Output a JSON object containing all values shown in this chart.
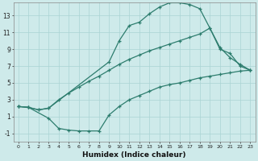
{
  "xlabel": "Humidex (Indice chaleur)",
  "bg_color": "#ceeaea",
  "line_color": "#2d7d6e",
  "xlim": [
    -0.5,
    23.5
  ],
  "ylim": [
    -2.0,
    14.5
  ],
  "xticks": [
    0,
    1,
    2,
    3,
    4,
    5,
    6,
    7,
    8,
    9,
    10,
    11,
    12,
    13,
    14,
    15,
    16,
    17,
    18,
    19,
    20,
    21,
    22,
    23
  ],
  "yticks": [
    -1,
    1,
    3,
    5,
    7,
    9,
    11,
    13
  ],
  "grid_color": "#aad4d4",
  "line1_x": [
    0,
    1,
    2,
    3,
    9,
    10,
    11,
    12,
    13,
    14,
    15,
    16,
    17,
    18,
    19,
    20,
    21,
    22,
    23
  ],
  "line1_y": [
    2.2,
    2.1,
    1.8,
    2.0,
    7.5,
    10.0,
    11.8,
    12.2,
    13.2,
    14.0,
    14.5,
    14.5,
    14.3,
    13.8,
    11.5,
    9.0,
    8.5,
    7.0,
    6.5
  ],
  "line2_x": [
    0,
    1,
    2,
    3,
    4,
    5,
    6,
    7,
    8,
    9,
    10,
    11,
    12,
    13,
    14,
    15,
    16,
    17,
    18,
    19,
    20,
    21,
    22,
    23
  ],
  "line2_y": [
    2.2,
    2.1,
    1.8,
    2.0,
    3.0,
    3.8,
    4.5,
    5.2,
    5.8,
    6.5,
    7.2,
    7.8,
    8.3,
    8.8,
    9.2,
    9.6,
    10.0,
    10.4,
    10.8,
    11.5,
    9.2,
    8.0,
    7.2,
    6.5
  ],
  "line3_x": [
    0,
    1,
    3,
    4,
    5,
    6,
    7,
    8,
    9,
    10,
    11,
    12,
    13,
    14,
    15,
    16,
    17,
    18,
    19,
    20,
    21,
    22,
    23
  ],
  "line3_y": [
    2.2,
    2.1,
    0.8,
    -0.4,
    -0.6,
    -0.7,
    -0.7,
    -0.7,
    1.2,
    2.2,
    3.0,
    3.5,
    4.0,
    4.5,
    4.8,
    5.0,
    5.3,
    5.6,
    5.8,
    6.0,
    6.2,
    6.4,
    6.5
  ]
}
